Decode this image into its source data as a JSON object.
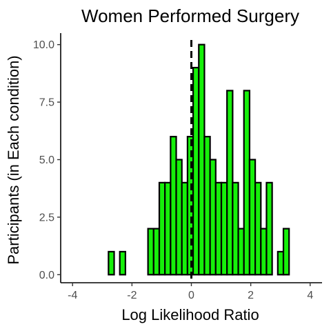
{
  "chart_data": {
    "type": "bar",
    "title": "Women Performed Surgery",
    "xlabel": "Log Likelihood Ratio",
    "ylabel": "Participants (in Each condition)",
    "xlim": [
      -4.4,
      4.4
    ],
    "ylim": [
      -0.35,
      10.5
    ],
    "x_ticks": [
      -4,
      -2,
      0,
      2,
      4
    ],
    "y_ticks": [
      0,
      2.5,
      5,
      7.5,
      10
    ],
    "x_tick_labels": [
      "-4",
      "-2",
      "0",
      "2",
      "4"
    ],
    "y_tick_labels": [
      "0.0",
      "2.5",
      "5.0",
      "7.5",
      "10.0"
    ],
    "bin_width": 0.19,
    "bin_start": -2.79,
    "counts": [
      1,
      0,
      1,
      0,
      0,
      0,
      0,
      2,
      2,
      4,
      4,
      6,
      5,
      4,
      6,
      9,
      10,
      6,
      5,
      4,
      4,
      8,
      4,
      2,
      8,
      5,
      4,
      2,
      4,
      0,
      1,
      2
    ],
    "vline": {
      "x": 0,
      "style": "dashed",
      "color": "#000000"
    },
    "bar_fill": "#16f00a",
    "bar_stroke": "#000000",
    "grid": false
  }
}
